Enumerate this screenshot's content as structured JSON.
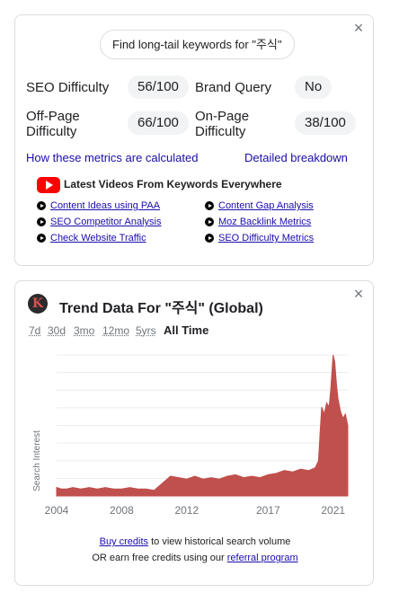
{
  "keyword_card": {
    "close_label": "×",
    "find_button": "Find long-tail keywords for \"주식\"",
    "metrics": [
      {
        "label_line1": "SEO Difficulty",
        "label_line2": "",
        "value": "56/100"
      },
      {
        "label_line1": "Brand Query",
        "label_line2": "",
        "value": "No"
      },
      {
        "label_line1": "Off-Page",
        "label_line2": "Difficulty",
        "value": "66/100"
      },
      {
        "label_line1": "On-Page",
        "label_line2": "Difficulty",
        "value": "38/100"
      }
    ],
    "how_link": "How these metrics are calculated",
    "breakdown_link": "Detailed breakdown",
    "videos_title": "Latest Videos From Keywords Everywhere",
    "video_links": [
      "Content Ideas using PAA",
      "Content Gap Analysis",
      "SEO Competitor Analysis",
      "Moz Backlink Metrics",
      "Check Website Traffic",
      "SEO Difficulty Metrics"
    ],
    "icons": {
      "youtube": "youtube-icon",
      "play": "play-circle-icon",
      "close": "close-icon"
    },
    "colors": {
      "youtube": "#ff0000",
      "link": "#1a0dab",
      "pill": "#f1f3f4"
    }
  },
  "trend_card": {
    "close_label": "×",
    "logo_letter": "K",
    "title": "Trend Data For \"주식\" (Global)",
    "ranges": [
      "7d",
      "30d",
      "3mo",
      "12mo",
      "5yrs",
      "All Time"
    ],
    "active_range": "All Time",
    "footer": {
      "buy_link": "Buy credits",
      "buy_rest": " to view historical search volume",
      "earn_prefix": "OR earn free credits using our ",
      "referral_link": "referral program"
    }
  },
  "chart_data": {
    "type": "area",
    "title": "",
    "xlabel": "",
    "ylabel": "Search Interest",
    "x_ticks": [
      "2004",
      "2008",
      "2012",
      "2017",
      "2021"
    ],
    "x_range": [
      2004,
      2021.9
    ],
    "ylim": [
      0,
      100
    ],
    "grid": true,
    "color": "#c0504d",
    "series": [
      {
        "x": [
          2004.0,
          2004.3,
          2004.6,
          2005.0,
          2005.5,
          2006.0,
          2006.5,
          2007.0,
          2007.5,
          2008.0,
          2008.5,
          2009.0,
          2009.5,
          2010.0,
          2010.3,
          2010.6,
          2011.0,
          2011.5,
          2012.0,
          2012.5,
          2013.0,
          2013.5,
          2014.0,
          2014.5,
          2015.0,
          2015.5,
          2016.0,
          2016.5,
          2017.0,
          2017.5,
          2018.0,
          2018.5,
          2019.0,
          2019.5,
          2019.9,
          2020.1,
          2020.2,
          2020.3,
          2020.45,
          2020.6,
          2020.75,
          2020.85,
          2020.95,
          2021.0,
          2021.1,
          2021.2,
          2021.3,
          2021.45,
          2021.6,
          2021.75,
          2021.9
        ],
        "values": [
          6,
          5,
          5,
          6,
          5,
          6,
          5,
          6,
          5,
          5,
          6,
          5,
          5,
          4,
          7,
          10,
          14,
          13,
          12,
          14,
          12,
          13,
          12,
          14,
          15,
          13,
          14,
          13,
          15,
          16,
          18,
          17,
          19,
          18,
          20,
          25,
          45,
          63,
          58,
          66,
          63,
          75,
          92,
          100,
          95,
          80,
          69,
          60,
          55,
          58,
          50
        ]
      }
    ]
  }
}
